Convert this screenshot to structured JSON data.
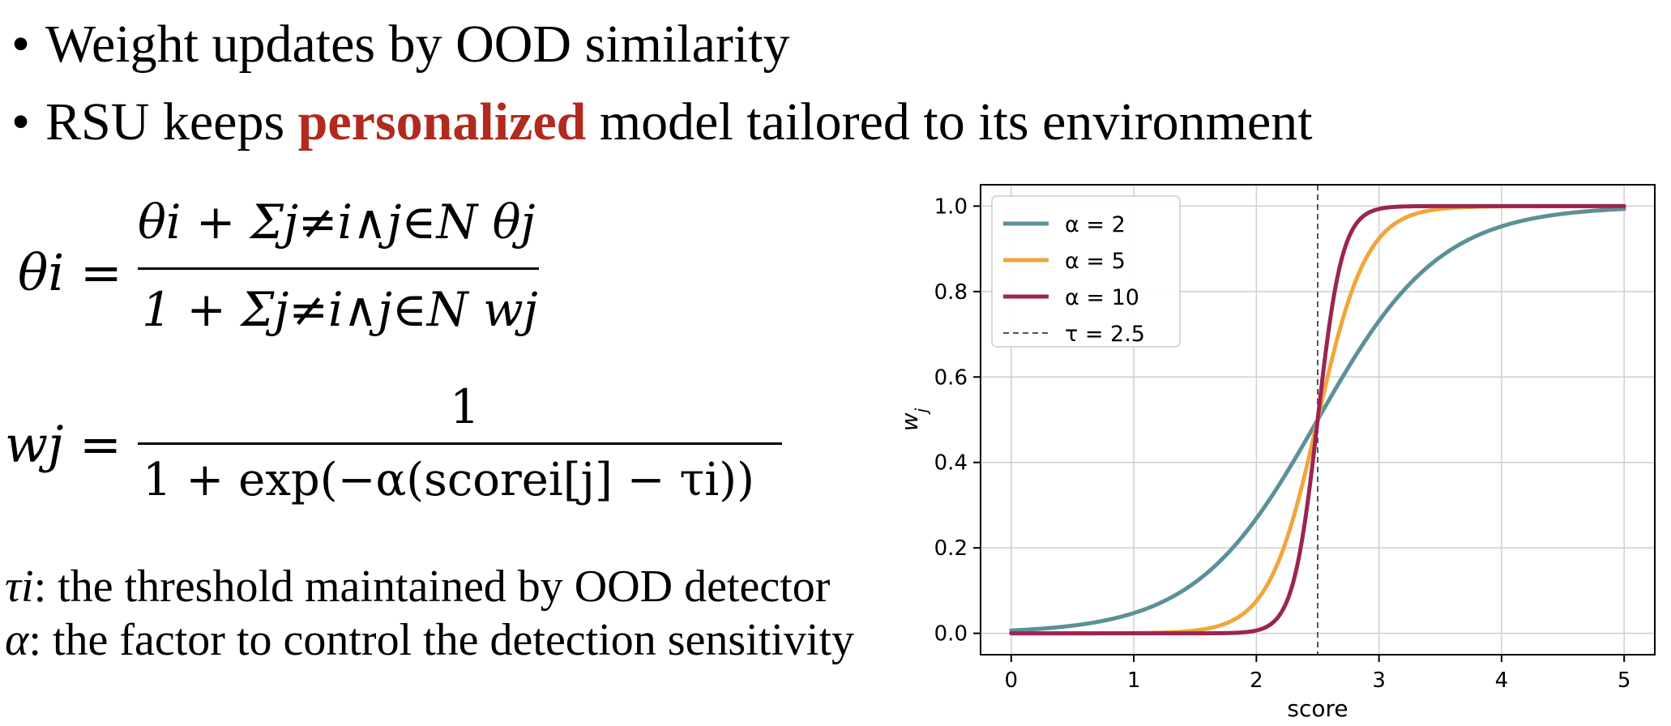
{
  "bullets": [
    {
      "text": "Weight updates by OOD similarity"
    },
    {
      "pre": "RSU keeps ",
      "accent": "personalized",
      "post": " model tailored to its environment"
    }
  ],
  "colors": {
    "accent": "#b22a1e"
  },
  "equations": {
    "theta": {
      "lhs": "θi",
      "numerator": "θi + Σj≠i∧j∈N θj",
      "denominator": "1 + Σj≠i∧j∈N wj"
    },
    "weight": {
      "lhs": "wj",
      "numerator": "1",
      "denominator": "1 + exp(−α(scorei[j] − τi))"
    }
  },
  "definitions": [
    {
      "symbol": "τi",
      "text": ": the threshold maintained by OOD detector"
    },
    {
      "symbol": "α",
      "text": ": the factor to control the detection sensitivity"
    }
  ],
  "chart_data": {
    "type": "line",
    "xlabel": "score",
    "ylabel": "w_j",
    "xlim": [
      -0.25,
      5.25
    ],
    "ylim": [
      -0.05,
      1.05
    ],
    "xticks": [
      0,
      1,
      2,
      3,
      4,
      5
    ],
    "xtick_labels": [
      "0",
      "1",
      "2",
      "3",
      "4",
      "5"
    ],
    "yticks": [
      0.0,
      0.2,
      0.4,
      0.6,
      0.8,
      1.0
    ],
    "ytick_labels": [
      "0.0",
      "0.2",
      "0.4",
      "0.6",
      "0.8",
      "1.0"
    ],
    "grid": true,
    "legend_position": "top-left",
    "function": "sigmoid",
    "x_range": [
      0,
      5
    ],
    "threshold": {
      "name": "τ = 2.5",
      "value": 2.5,
      "color": "#555555"
    },
    "series": [
      {
        "name": "α = 2",
        "alpha": 2,
        "color": "#5b9199"
      },
      {
        "name": "α = 5",
        "alpha": 5,
        "color": "#f0a63c"
      },
      {
        "name": "α = 10",
        "alpha": 10,
        "color": "#9b2452"
      }
    ]
  }
}
